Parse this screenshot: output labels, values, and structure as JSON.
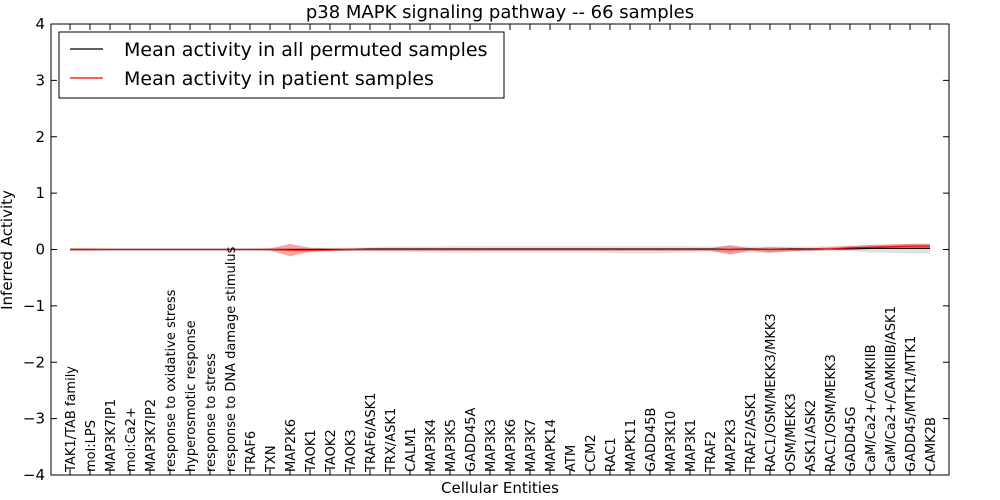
{
  "chart_data": {
    "type": "line",
    "title": "p38 MAPK signaling pathway -- 66 samples",
    "xlabel": "Cellular Entities",
    "ylabel": "Inferred Activity",
    "ylim": [
      -4,
      4
    ],
    "yticks": [
      4,
      3,
      2,
      1,
      0,
      -1,
      -2,
      -3,
      -4
    ],
    "ytick_labels": [
      "4",
      "3",
      "2",
      "1",
      "0",
      "−1",
      "−2",
      "−3",
      "−4"
    ],
    "grid": false,
    "legend_position": "top-left",
    "categories": [
      "TAK1/TAB family",
      "mol:LPS",
      "MAP3K7IP1",
      "mol:Ca2+",
      "MAP3K7IP2",
      "response to oxidative stress",
      "hyperosmotic response",
      "response to stress",
      "response to DNA damage stimulus",
      "TRAF6",
      "TXN",
      "MAP2K6",
      "TAOK1",
      "TAOK2",
      "TAOK3",
      "TRAF6/ASK1",
      "TRX/ASK1",
      "CALM1",
      "MAP3K4",
      "MAP3K5",
      "GADD45A",
      "MAP3K3",
      "MAP3K6",
      "MAP3K7",
      "MAPK14",
      "ATM",
      "CCM2",
      "RAC1",
      "MAPK11",
      "GADD45B",
      "MAP3K10",
      "MAP3K1",
      "TRAF2",
      "MAP2K3",
      "TRAF2/ASK1",
      "RAC1/OSM/MEKK3/MKK3",
      "OSM/MEKK3",
      "ASK1/ASK2",
      "RAC1/OSM/MEKK3",
      "GADD45G",
      "CaM/Ca2+/CAMKIIB",
      "CaM/Ca2+/CAMKIIB/ASK1",
      "GADD45/MTK1/MTK1",
      "CAMK2B"
    ],
    "series": [
      {
        "name": "Mean activity in all permuted samples",
        "color": "#000000",
        "values": [
          0,
          0,
          0,
          0,
          0,
          0,
          0,
          0,
          0,
          0,
          0,
          0,
          0,
          0,
          0,
          0.01,
          0.01,
          0.01,
          0.01,
          0.01,
          0.01,
          0.01,
          0.01,
          0.01,
          0.01,
          0.01,
          0.01,
          0.01,
          0.01,
          0.01,
          0.01,
          0.01,
          0.01,
          0,
          0.01,
          0,
          0.01,
          0.01,
          0.01,
          0.01,
          0.02,
          0.02,
          0.02,
          0.02
        ],
        "band_lower": [
          -0.02,
          -0.02,
          -0.02,
          -0.02,
          -0.02,
          -0.02,
          -0.02,
          -0.02,
          -0.02,
          -0.02,
          -0.02,
          -0.02,
          -0.03,
          -0.03,
          -0.03,
          -0.03,
          -0.04,
          -0.04,
          -0.05,
          -0.06,
          -0.06,
          -0.05,
          -0.05,
          -0.05,
          -0.05,
          -0.05,
          -0.05,
          -0.06,
          -0.07,
          -0.07,
          -0.06,
          -0.05,
          -0.03,
          -0.06,
          -0.05,
          -0.07,
          -0.04,
          -0.03,
          -0.03,
          -0.03,
          -0.05,
          -0.06,
          -0.07,
          -0.07
        ],
        "band_upper": [
          0.02,
          0.02,
          0.02,
          0.02,
          0.02,
          0.02,
          0.02,
          0.02,
          0.02,
          0.02,
          0.02,
          0.02,
          0.03,
          0.03,
          0.03,
          0.04,
          0.05,
          0.05,
          0.05,
          0.06,
          0.06,
          0.06,
          0.06,
          0.06,
          0.06,
          0.06,
          0.06,
          0.06,
          0.06,
          0.06,
          0.06,
          0.06,
          0.05,
          0.06,
          0.05,
          0.05,
          0.05,
          0.05,
          0.06,
          0.07,
          0.08,
          0.09,
          0.1,
          0.1
        ]
      },
      {
        "name": "Mean activity in patient samples",
        "color": "#ff0000",
        "values": [
          0,
          0,
          0,
          0,
          0,
          0,
          0,
          0,
          0,
          0,
          0,
          -0.01,
          -0.01,
          -0.01,
          0,
          0,
          0,
          0,
          0,
          0,
          0,
          0,
          0,
          0,
          0,
          0,
          0,
          0,
          0,
          0,
          0,
          0,
          0,
          0,
          0,
          0,
          0,
          0,
          0.01,
          0.03,
          0.04,
          0.05,
          0.06,
          0.06
        ],
        "band_lower": [
          -0.02,
          -0.02,
          -0.01,
          -0.01,
          -0.01,
          -0.01,
          -0.01,
          -0.01,
          -0.01,
          -0.01,
          -0.02,
          -0.12,
          -0.04,
          -0.02,
          -0.02,
          -0.02,
          -0.02,
          -0.02,
          -0.02,
          -0.02,
          -0.02,
          -0.02,
          -0.02,
          -0.02,
          -0.02,
          -0.02,
          -0.02,
          -0.02,
          -0.02,
          -0.02,
          -0.02,
          -0.02,
          -0.02,
          -0.09,
          -0.02,
          -0.05,
          -0.03,
          -0.02,
          -0.01,
          0,
          0.01,
          0.01,
          0.01,
          0.01
        ],
        "band_upper": [
          0.02,
          0.02,
          0.01,
          0.01,
          0.01,
          0.01,
          0.01,
          0.01,
          0.01,
          0.01,
          0.02,
          0.1,
          0.03,
          0.02,
          0.02,
          0.02,
          0.02,
          0.02,
          0.02,
          0.02,
          0.02,
          0.02,
          0.02,
          0.02,
          0.02,
          0.02,
          0.02,
          0.02,
          0.02,
          0.02,
          0.02,
          0.02,
          0.02,
          0.08,
          0.02,
          0.04,
          0.03,
          0.02,
          0.04,
          0.06,
          0.08,
          0.09,
          0.1,
          0.1
        ]
      }
    ]
  }
}
